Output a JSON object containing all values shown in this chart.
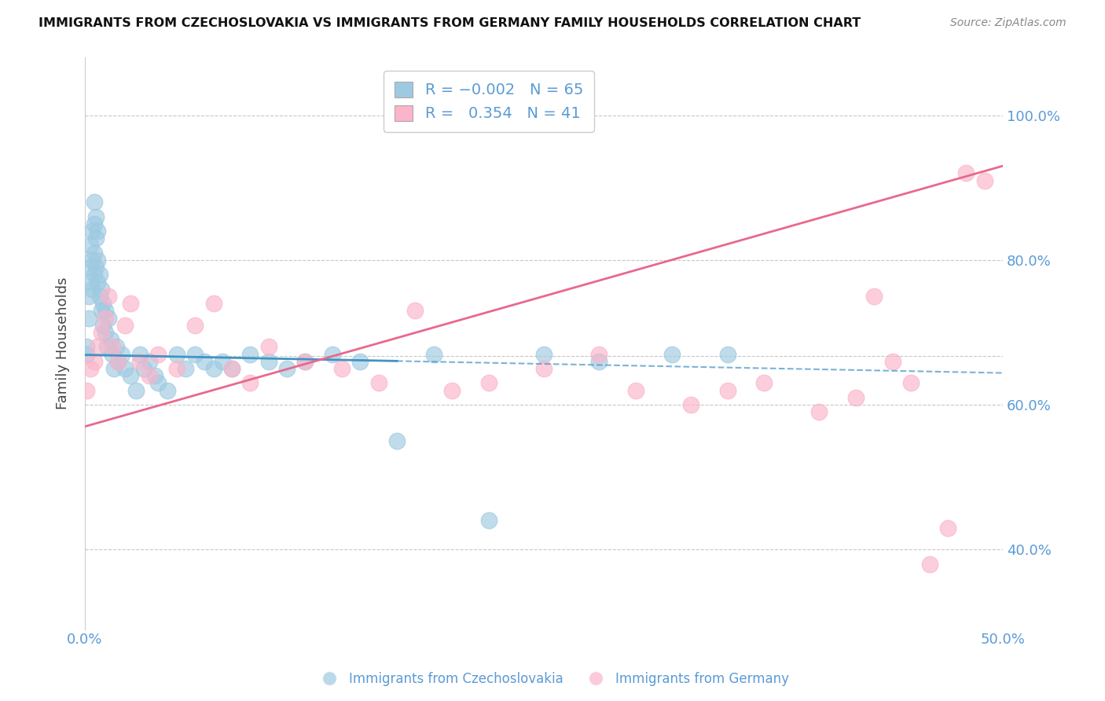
{
  "title": "IMMIGRANTS FROM CZECHOSLOVAKIA VS IMMIGRANTS FROM GERMANY FAMILY HOUSEHOLDS CORRELATION CHART",
  "source": "Source: ZipAtlas.com",
  "ylabel": "Family Households",
  "x_label_bottom_left": "0.0%",
  "x_label_bottom_right": "50.0%",
  "legend_entry1": "Immigrants from Czechoslovakia",
  "legend_entry2": "Immigrants from Germany",
  "R1": -0.002,
  "N1": 65,
  "R2": 0.354,
  "N2": 41,
  "color_blue": "#9ecae1",
  "color_pink": "#fbb4c9",
  "line_color_blue": "#4393c3",
  "line_color_pink": "#e8698d",
  "background_color": "#ffffff",
  "xlim": [
    0.0,
    0.5
  ],
  "ylim": [
    0.29,
    1.08
  ],
  "blue_x": [
    0.001,
    0.001,
    0.002,
    0.002,
    0.003,
    0.003,
    0.003,
    0.004,
    0.004,
    0.004,
    0.005,
    0.005,
    0.005,
    0.005,
    0.006,
    0.006,
    0.006,
    0.007,
    0.007,
    0.007,
    0.008,
    0.008,
    0.009,
    0.009,
    0.01,
    0.01,
    0.011,
    0.011,
    0.012,
    0.013,
    0.014,
    0.015,
    0.016,
    0.017,
    0.018,
    0.02,
    0.022,
    0.025,
    0.028,
    0.03,
    0.032,
    0.035,
    0.038,
    0.04,
    0.045,
    0.05,
    0.055,
    0.06,
    0.065,
    0.07,
    0.075,
    0.08,
    0.09,
    0.1,
    0.11,
    0.12,
    0.135,
    0.15,
    0.17,
    0.19,
    0.22,
    0.25,
    0.28,
    0.32,
    0.35
  ],
  "blue_y": [
    0.67,
    0.68,
    0.72,
    0.75,
    0.77,
    0.79,
    0.82,
    0.76,
    0.8,
    0.84,
    0.78,
    0.81,
    0.85,
    0.88,
    0.79,
    0.83,
    0.86,
    0.77,
    0.8,
    0.84,
    0.75,
    0.78,
    0.73,
    0.76,
    0.71,
    0.74,
    0.7,
    0.73,
    0.68,
    0.72,
    0.69,
    0.67,
    0.65,
    0.68,
    0.66,
    0.67,
    0.65,
    0.64,
    0.62,
    0.67,
    0.65,
    0.66,
    0.64,
    0.63,
    0.62,
    0.67,
    0.65,
    0.67,
    0.66,
    0.65,
    0.66,
    0.65,
    0.67,
    0.66,
    0.65,
    0.66,
    0.67,
    0.66,
    0.55,
    0.67,
    0.44,
    0.67,
    0.66,
    0.67,
    0.67
  ],
  "pink_x": [
    0.001,
    0.003,
    0.005,
    0.007,
    0.009,
    0.011,
    0.013,
    0.015,
    0.018,
    0.022,
    0.025,
    0.03,
    0.035,
    0.04,
    0.05,
    0.06,
    0.07,
    0.08,
    0.09,
    0.1,
    0.12,
    0.14,
    0.16,
    0.18,
    0.2,
    0.22,
    0.25,
    0.28,
    0.3,
    0.33,
    0.35,
    0.37,
    0.4,
    0.42,
    0.43,
    0.44,
    0.45,
    0.46,
    0.47,
    0.48,
    0.49
  ],
  "pink_y": [
    0.62,
    0.65,
    0.66,
    0.68,
    0.7,
    0.72,
    0.75,
    0.68,
    0.66,
    0.71,
    0.74,
    0.66,
    0.64,
    0.67,
    0.65,
    0.71,
    0.74,
    0.65,
    0.63,
    0.68,
    0.66,
    0.65,
    0.63,
    0.73,
    0.62,
    0.63,
    0.65,
    0.67,
    0.62,
    0.6,
    0.62,
    0.63,
    0.59,
    0.61,
    0.75,
    0.66,
    0.63,
    0.38,
    0.43,
    0.92,
    0.91
  ]
}
